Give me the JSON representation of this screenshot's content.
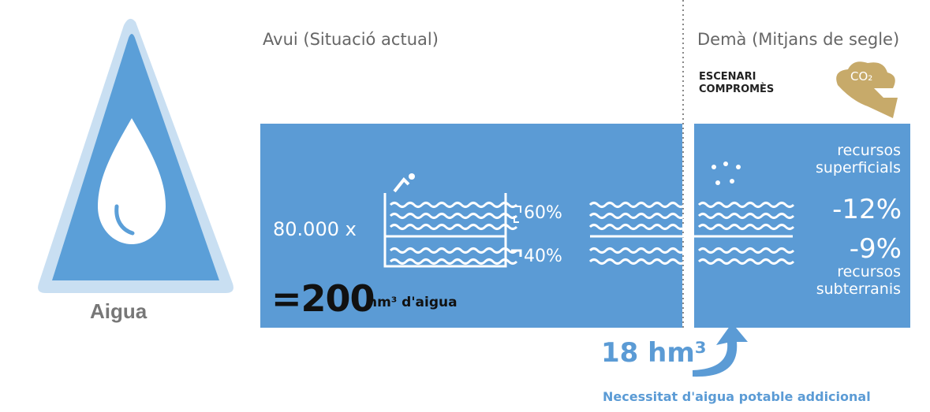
{
  "icon_label": "Aigua",
  "today": {
    "heading": "Avui (Situació actual)",
    "multiplier": "80.000 x",
    "surface_share": "60%",
    "ground_share": "40%",
    "total_value": "=200",
    "total_unit": "hm³ d'aigua"
  },
  "tomorrow": {
    "heading": "Demà (Mitjans de segle)",
    "scenario": [
      "ESCENARI",
      "COMPROMÈS"
    ],
    "co2": "CO₂",
    "surface_label": "recursos superficials",
    "surface_change": "-12%",
    "ground_change": "-9%",
    "ground_label": "recursos subterranis"
  },
  "additional": {
    "amount": "18 hm³",
    "caption": "Necessitat d'aigua potable addicional"
  }
}
